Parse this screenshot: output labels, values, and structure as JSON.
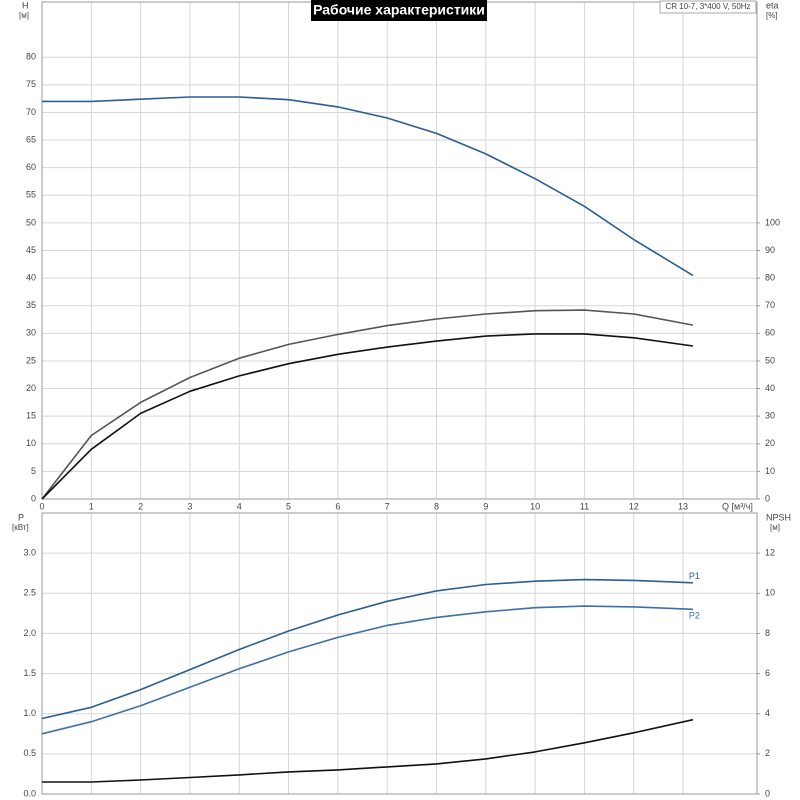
{
  "chart_data": [
    {
      "type": "line",
      "title": "Рабочие характеристики",
      "note": "CR 10-7, 3*400 V, 50Hz",
      "y_label": "H",
      "y_unit": "[м]",
      "y2_label": "eta",
      "y2_unit": "[%]",
      "x_label": "Q [м³/ч]",
      "x": [
        0,
        1,
        2,
        3,
        4,
        5,
        6,
        7,
        8,
        9,
        10,
        11,
        12,
        13.2
      ],
      "xlim": [
        0,
        14.5
      ],
      "xticks": [
        0,
        1,
        2,
        3,
        4,
        5,
        6,
        7,
        8,
        9,
        10,
        11,
        12,
        13
      ],
      "ylim": [
        0,
        90
      ],
      "yticks": [
        0,
        5,
        10,
        15,
        20,
        25,
        30,
        35,
        40,
        45,
        50,
        55,
        60,
        65,
        70,
        75,
        80
      ],
      "y2lim": [
        0,
        180
      ],
      "y2ticks": [
        0,
        10,
        20,
        30,
        40,
        50,
        60,
        70,
        80,
        90,
        100
      ],
      "grid": true,
      "series": [
        {
          "color": "#2a5d96",
          "values": [
            72,
            72,
            72.4,
            72.8,
            72.8,
            72.3,
            71,
            69,
            66.2,
            62.5,
            58,
            53,
            47,
            40.5
          ]
        },
        {
          "color": "#555555",
          "axis": "y2",
          "values": [
            0,
            23,
            35,
            44,
            51,
            56,
            59.6,
            62.8,
            65.2,
            67,
            68.2,
            68.4,
            67,
            63
          ]
        },
        {
          "color": "#111111",
          "axis": "y2",
          "values": [
            0,
            18,
            31,
            39,
            44.6,
            49,
            52.4,
            55,
            57.2,
            59,
            59.8,
            59.8,
            58.4,
            55.4
          ]
        }
      ]
    },
    {
      "type": "line",
      "y_label": "P",
      "y_unit": "[кВт]",
      "y2_label": "NPSH",
      "y2_unit": "[м]",
      "x": [
        0,
        1,
        2,
        3,
        4,
        5,
        6,
        7,
        8,
        9,
        10,
        11,
        12,
        13.2
      ],
      "xlim": [
        0,
        14.5
      ],
      "xticks": [
        0,
        1,
        2,
        3,
        4,
        5,
        6,
        7,
        8,
        9,
        10,
        11,
        12,
        13
      ],
      "ylim": [
        0,
        3.5
      ],
      "yticks": [
        {
          "value": 0,
          "label": "0.0"
        },
        {
          "value": 0.5,
          "label": "0.5"
        },
        {
          "value": 1,
          "label": "1.0"
        },
        {
          "value": 1.5,
          "label": "1.5"
        },
        {
          "value": 2,
          "label": "2.0"
        },
        {
          "value": 2.5,
          "label": "2.5"
        },
        {
          "value": 3,
          "label": "3.0"
        }
      ],
      "y2lim": [
        0,
        14
      ],
      "y2ticks": [
        0,
        2,
        4,
        6,
        8,
        10,
        12
      ],
      "grid": true,
      "series": [
        {
          "name": "P1",
          "color": "#2a5d96",
          "values": [
            0.94,
            1.08,
            1.3,
            1.55,
            1.8,
            2.03,
            2.23,
            2.4,
            2.53,
            2.61,
            2.65,
            2.67,
            2.66,
            2.63
          ]
        },
        {
          "name": "P2",
          "color": "#3f6fa8",
          "values": [
            0.75,
            0.9,
            1.1,
            1.33,
            1.56,
            1.77,
            1.95,
            2.1,
            2.2,
            2.27,
            2.32,
            2.34,
            2.33,
            2.3
          ]
        },
        {
          "color": "#111111",
          "axis": "y2",
          "values": [
            0.6,
            0.6,
            0.7,
            0.82,
            0.95,
            1.1,
            1.2,
            1.35,
            1.5,
            1.75,
            2.1,
            2.55,
            3.05,
            3.7
          ]
        }
      ]
    }
  ]
}
